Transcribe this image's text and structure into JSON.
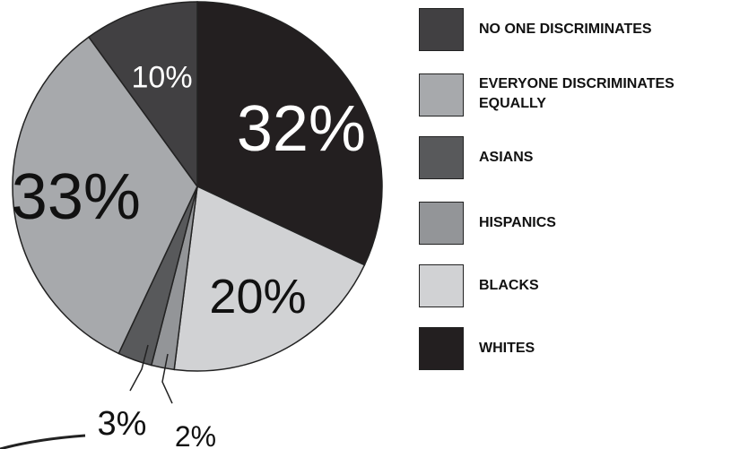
{
  "chart_data": {
    "type": "pie",
    "start_angle_deg": 0,
    "direction": "clockwise",
    "slices": [
      {
        "label": "WHITES",
        "value": 32,
        "display": "32%",
        "color": "#231f20"
      },
      {
        "label": "BLACKS",
        "value": 20,
        "display": "20%",
        "color": "#d1d2d4"
      },
      {
        "label": "HISPANICS",
        "value": 2,
        "display": "2%",
        "color": "#939598"
      },
      {
        "label": "ASIANS",
        "value": 3,
        "display": "3%",
        "color": "#58595b"
      },
      {
        "label": "EVERYONE DISCRIMINATES EQUALLY",
        "value": 33,
        "display": "33%",
        "color": "#a7a9ac"
      },
      {
        "label": "NO ONE DISCRIMINATES",
        "value": 10,
        "display": "10%",
        "color": "#414042"
      }
    ],
    "legend": {
      "placement": "right",
      "items": [
        {
          "label": "NO ONE DISCRIMINATES",
          "color": "#414042"
        },
        {
          "label": "EVERYONE DISCRIMINATES EQUALLY",
          "color": "#a7a9ac"
        },
        {
          "label": "ASIANS",
          "color": "#58595b"
        },
        {
          "label": "HISPANICS",
          "color": "#939598"
        },
        {
          "label": "BLACKS",
          "color": "#d1d2d4"
        },
        {
          "label": "WHITES",
          "color": "#231f20"
        }
      ]
    }
  }
}
